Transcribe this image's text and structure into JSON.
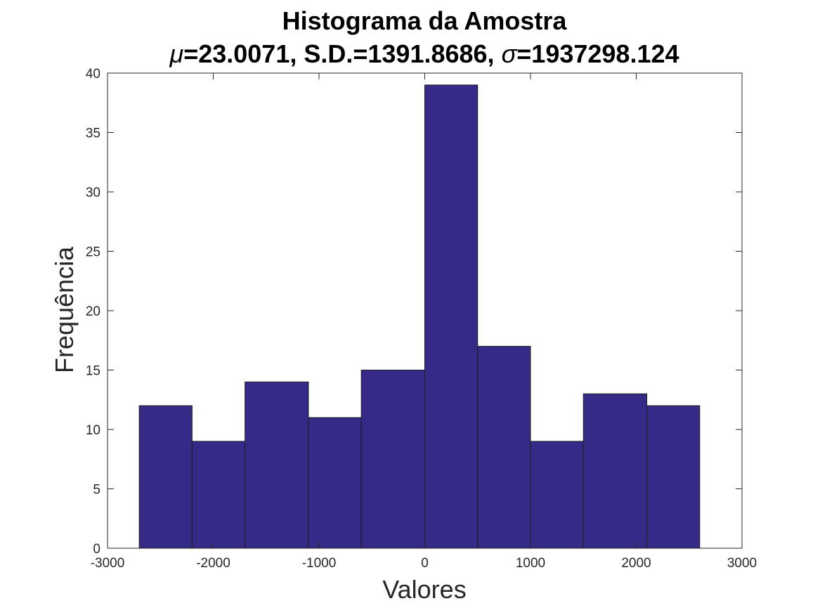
{
  "chart_data": {
    "type": "bar",
    "title": "Histograma da Amostra",
    "subtitle": {
      "mu_symbol": "μ",
      "mu_value": "=23.0071, S.D.=1391.8686, ",
      "sigma_symbol": "σ",
      "sigma_value": "=1937298.124"
    },
    "xlabel": "Valores",
    "ylabel": "Frequência",
    "xlim": [
      -3000,
      3000
    ],
    "ylim": [
      0,
      40
    ],
    "xticks": [
      -3000,
      -2000,
      -1000,
      0,
      1000,
      2000,
      3000
    ],
    "xtick_labels": [
      "-3000",
      "-2000",
      "-1000",
      "0",
      "1000",
      "2000",
      "3000"
    ],
    "yticks": [
      0,
      5,
      10,
      15,
      20,
      25,
      30,
      35,
      40
    ],
    "ytick_labels": [
      "0",
      "5",
      "10",
      "15",
      "20",
      "25",
      "30",
      "35",
      "40"
    ],
    "bin_edges": [
      -2700,
      -2200,
      -1700,
      -1100,
      -600,
      0,
      500,
      1000,
      1500,
      2100,
      2600
    ],
    "values": [
      12,
      9,
      14,
      11,
      15,
      39,
      17,
      9,
      13,
      12
    ],
    "grid": false,
    "colors": {
      "bar_fill": "#352a87",
      "bar_edge": "#1f1f1f",
      "axis": "#262626"
    }
  }
}
